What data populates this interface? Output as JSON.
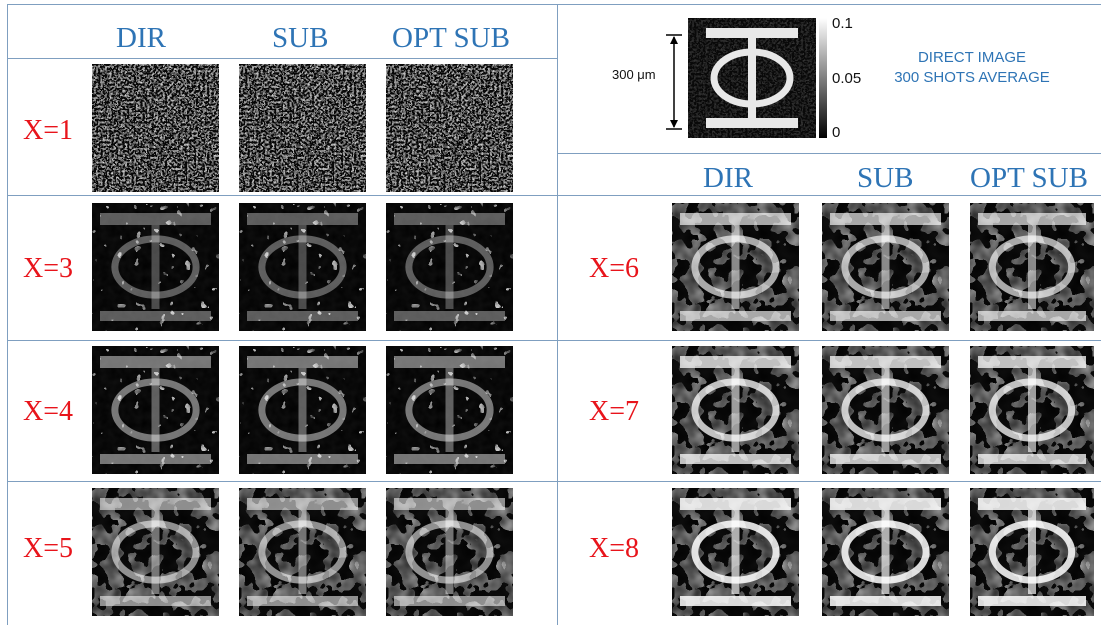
{
  "columns_left": [
    "DIR",
    "SUB",
    "OPT SUB"
  ],
  "columns_right": [
    "DIR",
    "SUB",
    "OPT SUB"
  ],
  "rows_left": [
    "X=1",
    "X=3",
    "X=4",
    "X=5"
  ],
  "rows_right": [
    "X=6",
    "X=7",
    "X=8"
  ],
  "direct_image": {
    "title_line1": "DIRECT IMAGE",
    "title_line2": "300 SHOTS AVERAGE",
    "scale_label": "300 μm",
    "colorbar_max": "0.1",
    "colorbar_mid": "0.05",
    "colorbar_min": "0"
  },
  "colors": {
    "header": "#2e74b5",
    "row_label": "#e8141b",
    "grid": "#7f9fc0"
  }
}
